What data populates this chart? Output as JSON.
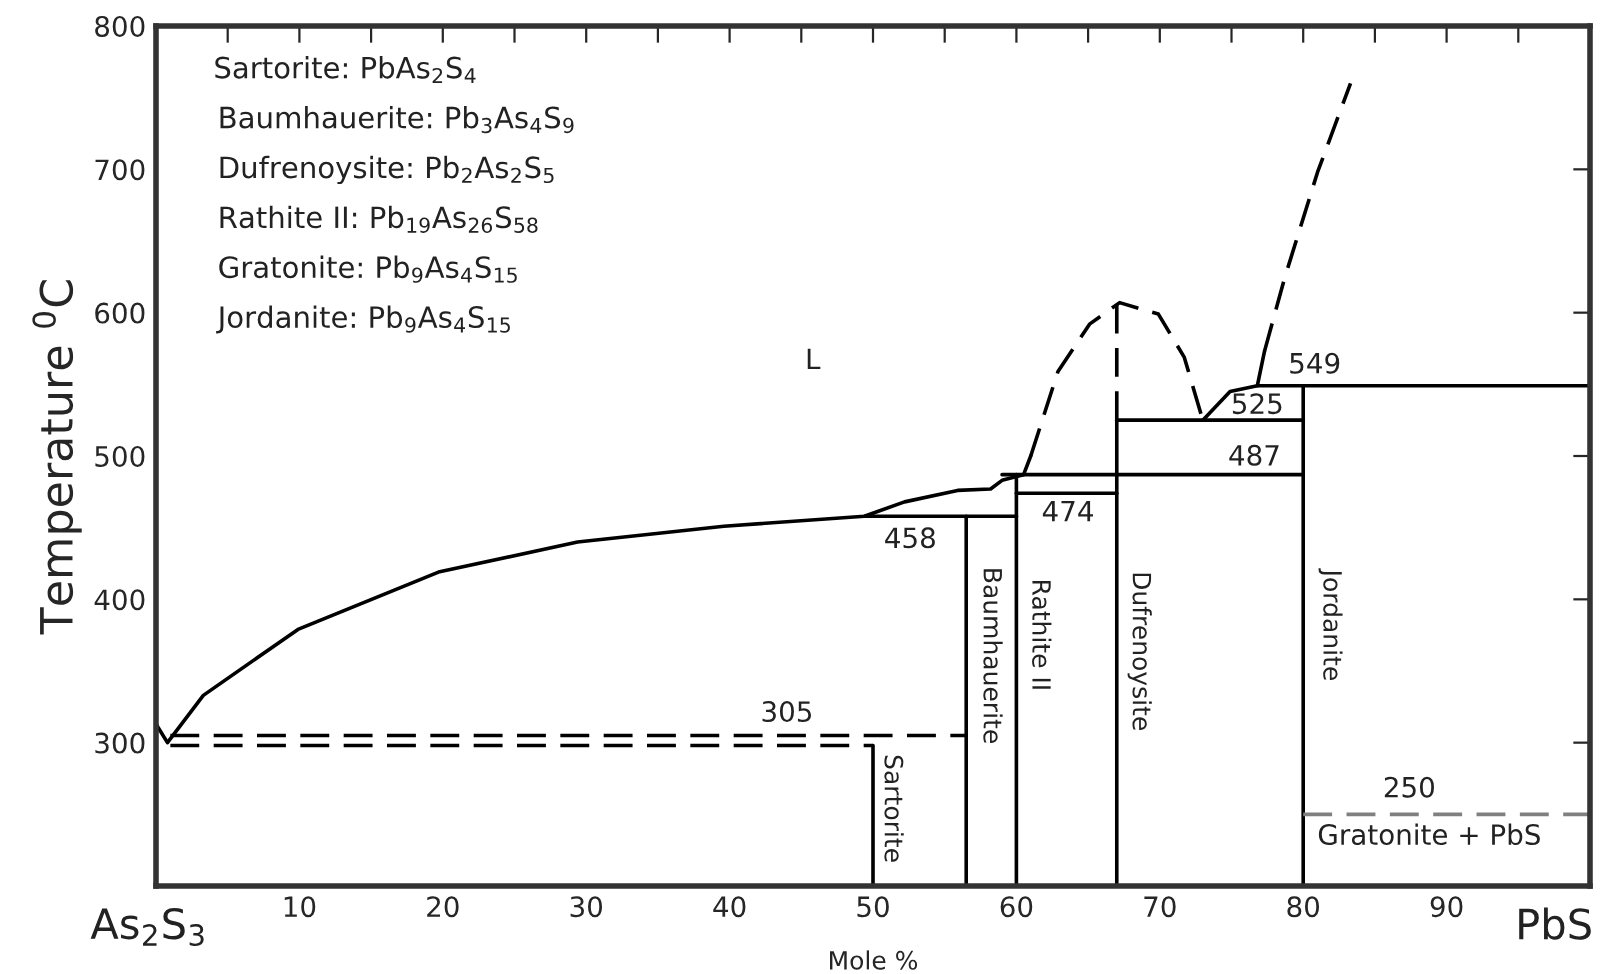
{
  "chart_data": {
    "type": "line",
    "xlabel": "Mole %",
    "ylabel": "Temperature $^{0}$C",
    "xlim": [
      0,
      100
    ],
    "ylim": [
      200,
      800
    ],
    "xticks": [
      {
        "value": 5,
        "label": null
      },
      10,
      {
        "value": 15,
        "label": null
      },
      20,
      {
        "value": 25,
        "label": null
      },
      30,
      {
        "value": 35,
        "label": null
      },
      40,
      {
        "value": 45,
        "label": null
      },
      50,
      {
        "value": 55,
        "label": null
      },
      60,
      {
        "value": 65,
        "label": null
      },
      70,
      {
        "value": 75,
        "label": null
      },
      80,
      {
        "value": 85,
        "label": null
      },
      90,
      {
        "value": 95,
        "label": null
      }
    ],
    "yticks": [
      300,
      400,
      500,
      600,
      700,
      800
    ],
    "grid": false,
    "series": [
      {
        "color": "#000000",
        "line_style": "solid",
        "x": [
          0,
          0.8,
          3.3,
          9.9,
          19.7,
          29.4,
          39.6,
          49.4,
          52.2,
          55.9,
          58.2,
          59,
          60.5,
          61
        ],
        "values": [
          313,
          300,
          333,
          379,
          419,
          440,
          451,
          458,
          468,
          476,
          477,
          483,
          487,
          500
        ]
      },
      {
        "color": "#000000",
        "line_style": "dashed",
        "x": [
          61,
          62.9,
          65.1,
          67.2,
          69.9,
          71.7,
          73
        ],
        "values": [
          500,
          559,
          592,
          607,
          599,
          569,
          525
        ]
      },
      {
        "color": "#000000",
        "line_style": "solid",
        "x": [
          73,
          74.9,
          76.8,
          77.3
        ],
        "values": [
          525,
          545,
          549,
          573
        ]
      },
      {
        "color": "#000000",
        "line_style": "dashed",
        "x": [
          77.3,
          78.7,
          81,
          83.3
        ],
        "values": [
          573,
          624,
          698,
          760
        ]
      },
      {
        "color": "#000000",
        "line_style": "solid",
        "x": [
          49.4,
          60
        ],
        "values": [
          458,
          458
        ]
      },
      {
        "color": "#000000",
        "line_style": "solid",
        "x": [
          60,
          67
        ],
        "values": [
          474,
          474
        ]
      },
      {
        "color": "#000000",
        "line_style": "solid",
        "x": [
          59,
          80
        ],
        "values": [
          487,
          487
        ]
      },
      {
        "color": "#000000",
        "line_style": "solid",
        "x": [
          67,
          80
        ],
        "values": [
          525,
          525
        ]
      },
      {
        "color": "#000000",
        "line_style": "solid",
        "x": [
          76.8,
          100
        ],
        "values": [
          549,
          549
        ]
      },
      {
        "color": "#000000",
        "line_style": "solid",
        "x": [
          50,
          50
        ],
        "values": [
          200,
          298
        ]
      },
      {
        "color": "#000000",
        "line_style": "solid",
        "x": [
          56.5,
          56.5
        ],
        "values": [
          200,
          458
        ]
      },
      {
        "color": "#000000",
        "line_style": "solid",
        "x": [
          60,
          60
        ],
        "values": [
          200,
          487
        ]
      },
      {
        "color": "#000000",
        "line_style": "solid",
        "x": [
          67,
          67
        ],
        "values": [
          200,
          525
        ]
      },
      {
        "color": "#000000",
        "line_style": "dashed",
        "x": [
          67,
          67
        ],
        "values": [
          525,
          607
        ]
      },
      {
        "color": "#000000",
        "line_style": "solid",
        "x": [
          80,
          80
        ],
        "values": [
          200,
          549
        ]
      },
      {
        "color": "#000000",
        "line_style": "dashed",
        "x": [
          1,
          56.5
        ],
        "values": [
          305,
          305
        ]
      },
      {
        "color": "#000000",
        "line_style": "dashed",
        "x": [
          1,
          50
        ],
        "values": [
          298,
          298
        ]
      },
      {
        "color": "#808080",
        "line_style": "dashed",
        "x": [
          80,
          100
        ],
        "values": [
          250,
          250
        ]
      }
    ],
    "annotations": [
      "Sartorite: PbAs$_{2}$S$_{4}$",
      "Baumhauerite: Pb$_{3}$As$_{4}$S$_{9}$",
      "Dufrenoysite: Pb$_{2}$As$_{2}$S$_{5}$",
      "Rathite II: Pb$_{19}$As$_{26}$S$_{58}$",
      "Gratonite: Pb$_{9}$As$_{4}$S$_{15}$",
      "Jordanite: Pb$_{9}$As$_{4}$S$_{15}$",
      "L",
      "549",
      "525",
      "487",
      "474",
      "458",
      "305",
      "250",
      "Gratonite + PbS",
      "Sartorite",
      "Baumhauerite",
      "Rathite II",
      "Dufrenoysite",
      "Jordanite",
      "As$_{2}$S$_{3}$",
      "PbS"
    ]
  }
}
